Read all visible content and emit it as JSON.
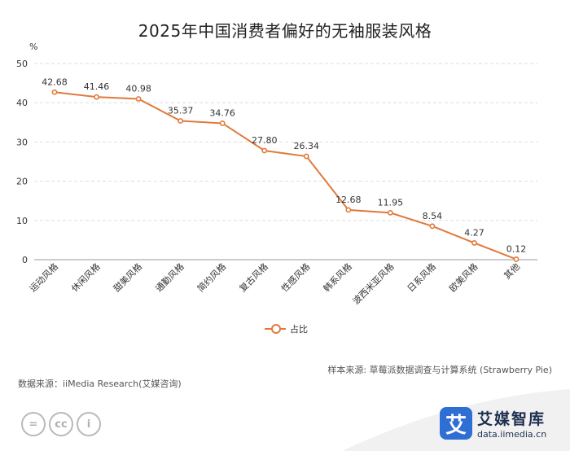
{
  "colors": {
    "line": "#e07a3c",
    "grid": "#dddddd",
    "brand": "#2f6ed3"
  },
  "chart_data": {
    "type": "line",
    "title": "2025年中国消费者偏好的无袖服装风格",
    "ylabel": "%",
    "xlabel": "",
    "ylim": [
      0,
      50
    ],
    "yticks": [
      0,
      10,
      20,
      30,
      40,
      50
    ],
    "grid": true,
    "legend_position": "bottom-center",
    "categories": [
      "运动风格",
      "休闲风格",
      "甜美风格",
      "通勤风格",
      "简约风格",
      "复古风格",
      "性感风格",
      "韩系风格",
      "波西米亚风格",
      "日系风格",
      "欧美风格",
      "其他"
    ],
    "series": [
      {
        "name": "占比",
        "values": [
          42.68,
          41.46,
          40.98,
          35.37,
          34.76,
          27.8,
          26.34,
          12.68,
          11.95,
          8.54,
          4.27,
          0.12
        ]
      }
    ],
    "value_labels": [
      "42.68",
      "41.46",
      "40.98",
      "35.37",
      "34.76",
      "27.80",
      "26.34",
      "12.68",
      "11.95",
      "8.54",
      "4.27",
      "0.12"
    ]
  },
  "footer": {
    "sample_source": "样本来源: 草莓派数据调查与计算系统 (Strawberry Pie)",
    "data_source": "数据来源：iiMedia Research(艾媒咨询)"
  },
  "license_icons": [
    "equals-icon",
    "cc-icon",
    "person-icon"
  ],
  "license_glyphs": [
    "=",
    "cc",
    "i"
  ],
  "brand": {
    "logo_glyph": "艾",
    "name": "艾媒智库",
    "url": "data.iimedia.cn"
  }
}
